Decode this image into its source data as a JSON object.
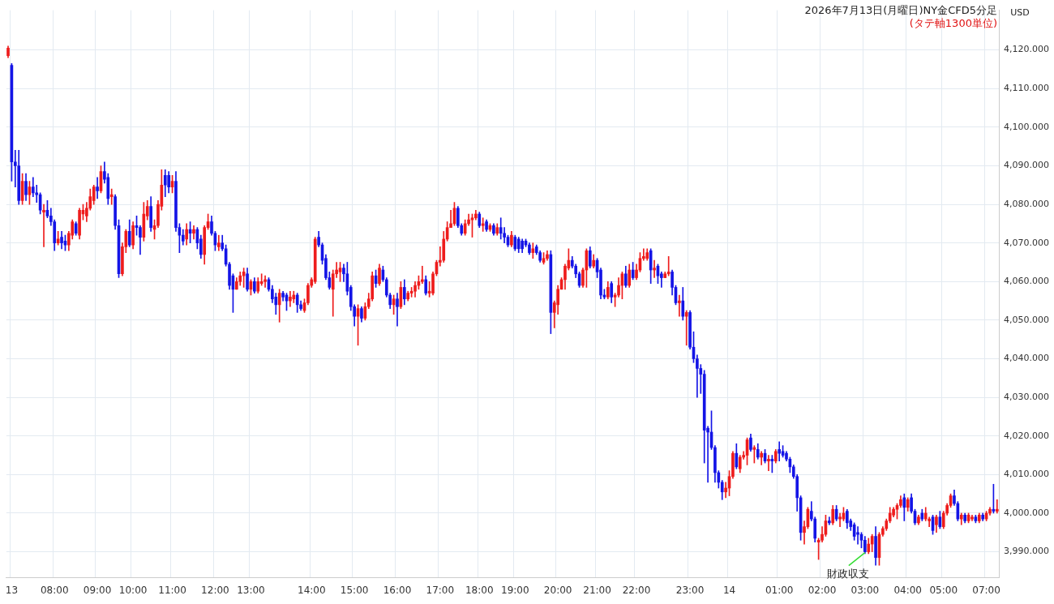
{
  "chart_data": {
    "type": "candlestick",
    "title": "2026年7月13日(月曜日)NY金CFD5分足",
    "subtitle": "(タテ軸1300単位)",
    "ylabel": "USD",
    "annotations": [
      {
        "text": "財政収支",
        "x": "03:00",
        "y": 3990
      }
    ],
    "categories": [
      null,
      "13",
      null,
      null,
      null,
      null,
      null,
      null,
      null,
      null,
      null,
      null,
      null,
      "08:00",
      null,
      null,
      null,
      null,
      null,
      null,
      null,
      null,
      null,
      null,
      null,
      "09:00",
      null,
      null,
      null,
      null,
      null,
      null,
      null,
      null,
      null,
      "10:00",
      null,
      null,
      null,
      null,
      null,
      null,
      null,
      null,
      null,
      null,
      "11:00",
      null,
      null,
      null,
      null,
      null,
      null,
      null,
      null,
      null,
      null,
      null,
      "12:00",
      null,
      null,
      null,
      null,
      null,
      null,
      null,
      null,
      null,
      "13:00",
      null,
      null,
      null,
      null,
      null,
      null,
      null,
      null,
      null,
      null,
      null,
      null,
      null,
      null,
      null,
      null,
      "14:00",
      null,
      null,
      null,
      null,
      null,
      null,
      null,
      null,
      null,
      null,
      null,
      "15:00",
      null,
      null,
      null,
      null,
      null,
      null,
      null,
      null,
      null,
      null,
      null,
      "16:00",
      null,
      null,
      null,
      null,
      null,
      null,
      null,
      null,
      null,
      null,
      null,
      "17:00",
      null,
      null,
      null,
      null,
      null,
      null,
      null,
      null,
      null,
      null,
      "18:00",
      null,
      null,
      null,
      null,
      null,
      null,
      null,
      null,
      null,
      "19:00",
      null,
      null,
      null,
      null,
      null,
      null,
      null,
      null,
      null,
      null,
      null,
      "20:00",
      null,
      null,
      null,
      null,
      null,
      null,
      null,
      null,
      null,
      null,
      "21:00",
      null,
      null,
      null,
      null,
      null,
      null,
      null,
      null,
      null,
      null,
      "22:00",
      null,
      null,
      null,
      null,
      null,
      null,
      null,
      null,
      null,
      null,
      null,
      null,
      null,
      null,
      "23:00",
      null,
      null,
      null,
      null,
      null,
      null,
      null,
      null,
      null,
      null,
      "14",
      null,
      null,
      null,
      null,
      null,
      null,
      null,
      null,
      null,
      null,
      null,
      null,
      null,
      "01:00",
      null,
      null,
      null,
      null,
      null,
      null,
      null,
      null,
      null,
      null,
      null,
      "02:00",
      null,
      null,
      null,
      null,
      null,
      null,
      null,
      null,
      null,
      null,
      null,
      "03:00",
      null,
      null,
      null,
      null,
      null,
      null,
      null,
      null,
      null,
      null,
      null,
      "04:00",
      null,
      null,
      null,
      null,
      null,
      null,
      null,
      null,
      null,
      "05:00",
      null,
      null,
      null,
      null,
      null,
      null,
      null,
      null,
      null,
      null,
      null,
      "07:00",
      null,
      null,
      null
    ],
    "ohlc": [
      [
        4118.5,
        4121,
        4118,
        4120.5
      ],
      [
        4116,
        4116.5,
        4086,
        4091
      ],
      [
        4091,
        4094,
        4084.5,
        4090
      ],
      [
        4090,
        4094,
        4080,
        4081
      ],
      [
        4081,
        4088,
        4080,
        4086
      ],
      [
        4086,
        4088,
        4081,
        4082.5
      ],
      [
        4082.5,
        4086,
        4080,
        4084.5
      ],
      [
        4084.5,
        4087,
        4082,
        4083
      ],
      [
        4083,
        4085,
        4080.5,
        4082.5
      ],
      [
        4082.5,
        4083,
        4077.5,
        4078.5
      ],
      [
        4078,
        4080,
        4069,
        4078.5
      ],
      [
        4078.5,
        4081,
        4076.5,
        4077
      ],
      [
        4077,
        4079,
        4074.5,
        4075.5
      ],
      [
        4075.5,
        4076,
        4068,
        4070
      ],
      [
        4070,
        4073,
        4069.5,
        4071
      ],
      [
        4071.5,
        4073,
        4068.5,
        4070
      ],
      [
        4070.5,
        4072,
        4068,
        4069.5
      ],
      [
        4069.5,
        4073,
        4068,
        4072.5
      ],
      [
        4072,
        4076,
        4071,
        4075.5
      ],
      [
        4075,
        4075.5,
        4072,
        4072.5
      ],
      [
        4072,
        4079,
        4071,
        4078.5
      ],
      [
        4077.5,
        4080,
        4076,
        4078.5
      ],
      [
        4077,
        4080.5,
        4075.5,
        4079
      ],
      [
        4079,
        4084,
        4078.5,
        4082
      ],
      [
        4081,
        4085,
        4080,
        4084.5
      ],
      [
        4084.5,
        4087,
        4081.5,
        4083.5
      ],
      [
        4083.5,
        4090,
        4083,
        4088.5
      ],
      [
        4088.5,
        4091,
        4085.5,
        4086.5
      ],
      [
        4087,
        4088,
        4080,
        4081.5
      ],
      [
        4082,
        4084,
        4080,
        4082.5
      ],
      [
        4082,
        4082.5,
        4073.5,
        4074.5
      ],
      [
        4074.5,
        4076,
        4061,
        4062
      ],
      [
        4062,
        4070,
        4061.5,
        4069
      ],
      [
        4069,
        4073.5,
        4067.5,
        4073
      ],
      [
        4073,
        4076,
        4069,
        4069.5
      ],
      [
        4069.5,
        4075.5,
        4068.5,
        4074.5
      ],
      [
        4074.5,
        4077,
        4072,
        4074
      ],
      [
        4074,
        4074.5,
        4067,
        4071.5
      ],
      [
        4071.5,
        4080.5,
        4070.5,
        4077.5
      ],
      [
        4077,
        4081,
        4076,
        4079.5
      ],
      [
        4079.5,
        4082,
        4073,
        4074
      ],
      [
        4073.5,
        4076,
        4071,
        4074.5
      ],
      [
        4074.5,
        4081,
        4074,
        4080
      ],
      [
        4079.5,
        4089,
        4078.5,
        4085
      ],
      [
        4087.5,
        4089,
        4082,
        4085
      ],
      [
        4087.5,
        4088.5,
        4083,
        4084.5
      ],
      [
        4084.5,
        4087.5,
        4083,
        4086
      ],
      [
        4086,
        4088.5,
        4073,
        4074
      ],
      [
        4074,
        4075,
        4067.5,
        4072
      ],
      [
        4072,
        4073.5,
        4069.5,
        4070.5
      ],
      [
        4071,
        4075,
        4069.5,
        4073.5
      ],
      [
        4073.5,
        4075.5,
        4070,
        4072.5
      ],
      [
        4072.5,
        4074.5,
        4071,
        4073.5
      ],
      [
        4073.5,
        4074,
        4068.5,
        4070
      ],
      [
        4071,
        4072,
        4066,
        4067
      ],
      [
        4067,
        4074.5,
        4064.5,
        4074
      ],
      [
        4074,
        4077.5,
        4073.5,
        4075.5
      ],
      [
        4075.5,
        4077,
        4072,
        4072.5
      ],
      [
        4072.5,
        4073,
        4068,
        4069.5
      ],
      [
        4069,
        4072,
        4068,
        4070
      ],
      [
        4070,
        4072,
        4068,
        4068.5
      ],
      [
        4068.5,
        4069.5,
        4064,
        4064.5
      ],
      [
        4064.5,
        4065,
        4058,
        4059
      ],
      [
        4061.5,
        4062,
        4052,
        4058
      ],
      [
        4058,
        4061,
        4058,
        4060
      ],
      [
        4060,
        4062.5,
        4059,
        4061.5
      ],
      [
        4061.5,
        4063.5,
        4058.5,
        4062.5
      ],
      [
        4062,
        4063.5,
        4057.5,
        4058
      ],
      [
        4058,
        4060.5,
        4056.5,
        4060
      ],
      [
        4060,
        4061,
        4057,
        4057.5
      ],
      [
        4057.5,
        4061,
        4057,
        4060
      ],
      [
        4059.5,
        4062,
        4059,
        4060
      ],
      [
        4060,
        4061.5,
        4058.5,
        4060.5
      ],
      [
        4060.5,
        4061,
        4057.5,
        4058
      ],
      [
        4058,
        4059,
        4054.5,
        4055.5
      ],
      [
        4056,
        4057,
        4051.5,
        4054
      ],
      [
        4054,
        4058,
        4049.5,
        4057
      ],
      [
        4057,
        4057.5,
        4055,
        4056
      ],
      [
        4056.5,
        4057,
        4052.5,
        4055
      ],
      [
        4055,
        4057.5,
        4053.5,
        4056
      ],
      [
        4055.5,
        4057.5,
        4054.5,
        4056.5
      ],
      [
        4056.5,
        4057,
        4052,
        4054
      ],
      [
        4054,
        4055,
        4052.5,
        4053
      ],
      [
        4052.5,
        4055.5,
        4052,
        4054.5
      ],
      [
        4054.5,
        4059.5,
        4054,
        4059
      ],
      [
        4059,
        4061,
        4058.5,
        4060.5
      ],
      [
        4060,
        4071.5,
        4059.5,
        4071
      ],
      [
        4071.5,
        4073,
        4069,
        4069.5
      ],
      [
        4069.5,
        4070,
        4064.5,
        4065.5
      ],
      [
        4066,
        4067,
        4060.5,
        4061
      ],
      [
        4061,
        4062.5,
        4058,
        4058.5
      ],
      [
        4058,
        4063,
        4051,
        4062
      ],
      [
        4062,
        4065,
        4061,
        4063
      ],
      [
        4062.5,
        4065,
        4060,
        4063.5
      ],
      [
        4063.5,
        4064.5,
        4060,
        4062
      ],
      [
        4062,
        4065,
        4056.5,
        4057.5
      ],
      [
        4058.5,
        4059,
        4052.5,
        4053.5
      ],
      [
        4053.5,
        4054,
        4048.5,
        4051
      ],
      [
        4051,
        4054,
        4043.5,
        4053
      ],
      [
        4053,
        4053.5,
        4049.5,
        4050.5
      ],
      [
        4050.5,
        4054.5,
        4050,
        4053.5
      ],
      [
        4053.5,
        4057,
        4053,
        4055.5
      ],
      [
        4055.5,
        4062.5,
        4055,
        4061.5
      ],
      [
        4061.5,
        4063,
        4058.5,
        4059.5
      ],
      [
        4059.5,
        4064.5,
        4059,
        4063.5
      ],
      [
        4063,
        4064,
        4060,
        4060.5
      ],
      [
        4060.5,
        4061,
        4056,
        4056.5
      ],
      [
        4056.5,
        4057,
        4053,
        4054
      ],
      [
        4054,
        4056.5,
        4051.5,
        4055.5
      ],
      [
        4055.5,
        4057,
        4048.5,
        4053.5
      ],
      [
        4053.5,
        4060,
        4053,
        4058.5
      ],
      [
        4058.5,
        4060.5,
        4054,
        4055.5
      ],
      [
        4055.5,
        4057.5,
        4055,
        4057
      ],
      [
        4057,
        4058.5,
        4056,
        4057.5
      ],
      [
        4057.5,
        4060,
        4056,
        4059
      ],
      [
        4059,
        4061.5,
        4058,
        4060
      ],
      [
        4060,
        4064,
        4059.5,
        4060.5
      ],
      [
        4060.5,
        4061.5,
        4056.5,
        4057
      ],
      [
        4057,
        4060,
        4056,
        4057.5
      ],
      [
        4057,
        4062.5,
        4056.5,
        4062
      ],
      [
        4062,
        4065.5,
        4061.5,
        4065
      ],
      [
        4065,
        4069,
        4064,
        4065.5
      ],
      [
        4065.5,
        4073,
        4065,
        4071
      ],
      [
        4071,
        4075.5,
        4070.5,
        4074
      ],
      [
        4074,
        4078.5,
        4074,
        4075
      ],
      [
        4075,
        4080.5,
        4074.5,
        4079
      ],
      [
        4079,
        4079.5,
        4074,
        4074.5
      ],
      [
        4074.5,
        4075,
        4072,
        4072.5
      ],
      [
        4072.5,
        4076,
        4072,
        4075
      ],
      [
        4075,
        4077.5,
        4074.5,
        4076
      ],
      [
        4076,
        4077.5,
        4071.5,
        4076.5
      ],
      [
        4076.5,
        4078.5,
        4076,
        4077.5
      ],
      [
        4077.5,
        4078,
        4074,
        4074.5
      ],
      [
        4074.5,
        4076.5,
        4073,
        4075
      ],
      [
        4075.5,
        4076,
        4073,
        4073.5
      ],
      [
        4073.5,
        4075,
        4073,
        4074.5
      ],
      [
        4074.5,
        4075,
        4072,
        4072.5
      ],
      [
        4072.5,
        4075,
        4072,
        4074
      ],
      [
        4074,
        4076.5,
        4071,
        4072.5
      ],
      [
        4072.5,
        4074,
        4070,
        4071.5
      ],
      [
        4071.5,
        4072,
        4069,
        4069.5
      ],
      [
        4069.5,
        4073,
        4069,
        4072
      ],
      [
        4071.5,
        4072,
        4068,
        4068.5
      ],
      [
        4071,
        4071.5,
        4067.5,
        4068.5
      ],
      [
        4070.5,
        4071,
        4067.5,
        4068.5
      ],
      [
        4070.5,
        4071,
        4069,
        4069.5
      ],
      [
        4069.5,
        4070,
        4067,
        4067.5
      ],
      [
        4067.5,
        4070,
        4066,
        4068.5
      ],
      [
        4069,
        4069.5,
        4067,
        4067.5
      ],
      [
        4067.5,
        4068,
        4065,
        4065.5
      ],
      [
        4065,
        4067.5,
        4064.5,
        4066
      ],
      [
        4066,
        4068,
        4065.5,
        4067
      ],
      [
        4067,
        4068,
        4046.5,
        4052
      ],
      [
        4052,
        4055,
        4048,
        4054.5
      ],
      [
        4054,
        4059,
        4051.5,
        4058
      ],
      [
        4058,
        4061,
        4058,
        4060.5
      ],
      [
        4060.5,
        4064.5,
        4058,
        4064
      ],
      [
        4063.5,
        4068.5,
        4063,
        4065.5
      ],
      [
        4065.5,
        4066.5,
        4063.5,
        4064
      ],
      [
        4064,
        4064.5,
        4061,
        4062
      ],
      [
        4062,
        4062.5,
        4058.5,
        4059
      ],
      [
        4059,
        4063.5,
        4058.5,
        4063
      ],
      [
        4063,
        4068.5,
        4058.5,
        4068
      ],
      [
        4068,
        4069,
        4063.5,
        4064
      ],
      [
        4064,
        4067,
        4063.5,
        4065.5
      ],
      [
        4065.5,
        4066,
        4061,
        4062.5
      ],
      [
        4063,
        4063.5,
        4055.5,
        4056.5
      ],
      [
        4056.5,
        4058,
        4055.5,
        4056
      ],
      [
        4056,
        4060,
        4055.5,
        4058.5
      ],
      [
        4059.5,
        4060,
        4054.5,
        4056
      ],
      [
        4056,
        4057,
        4053.5,
        4056.5
      ],
      [
        4056.5,
        4061,
        4056,
        4059
      ],
      [
        4059,
        4062.5,
        4055.5,
        4062
      ],
      [
        4062,
        4064,
        4058.5,
        4059
      ],
      [
        4059,
        4064.5,
        4058.5,
        4063
      ],
      [
        4063,
        4065,
        4060.5,
        4061
      ],
      [
        4061,
        4064.5,
        4060.5,
        4063
      ],
      [
        4063,
        4067.5,
        4062.5,
        4066
      ],
      [
        4066,
        4068.5,
        4065.5,
        4066.5
      ],
      [
        4066,
        4068.5,
        4065.5,
        4067.5
      ],
      [
        4068,
        4068.5,
        4059.5,
        4063
      ],
      [
        4063,
        4065.5,
        4061,
        4063.5
      ],
      [
        4064,
        4064.5,
        4059.5,
        4061.5
      ],
      [
        4062,
        4062.5,
        4058.5,
        4061
      ],
      [
        4061,
        4062.5,
        4061,
        4062
      ],
      [
        4062,
        4066.5,
        4061.5,
        4062.5
      ],
      [
        4062.5,
        4063,
        4056.5,
        4058.5
      ],
      [
        4058.5,
        4059,
        4054,
        4054.5
      ],
      [
        4054.5,
        4056.5,
        4051,
        4055
      ],
      [
        4055,
        4058.5,
        4050,
        4051
      ],
      [
        4051,
        4052.5,
        4043.5,
        4052
      ],
      [
        4052,
        4052.5,
        4042.5,
        4043
      ],
      [
        4043,
        4047,
        4039,
        4040
      ],
      [
        4040,
        4041,
        4030,
        4037.5
      ],
      [
        4037.5,
        4038.5,
        4031,
        4036
      ],
      [
        4036,
        4037,
        4013,
        4021.5
      ],
      [
        4022,
        4022.5,
        4008,
        4021
      ],
      [
        4021,
        4026.5,
        4016.5,
        4017
      ],
      [
        4017,
        4017.5,
        4008,
        4010.5
      ],
      [
        4010.5,
        4011,
        4006.5,
        4008
      ],
      [
        4008,
        4008.5,
        4003.5,
        4005.5
      ],
      [
        4005.5,
        4008,
        4004,
        4006.5
      ],
      [
        4006.5,
        4011,
        4004.5,
        4009.5
      ],
      [
        4009.5,
        4016,
        4009,
        4015.5
      ],
      [
        4015.5,
        4018,
        4011.5,
        4012
      ],
      [
        4011.5,
        4015,
        4010.5,
        4014.5
      ],
      [
        4014.5,
        4016,
        4014,
        4015
      ],
      [
        4015,
        4019.5,
        4012.5,
        4019
      ],
      [
        4019.5,
        4020.5,
        4016,
        4016.5
      ],
      [
        4016.5,
        4017.5,
        4013,
        4017
      ],
      [
        4016.5,
        4018,
        4014,
        4014.5
      ],
      [
        4014.5,
        4016,
        4012.5,
        4015.5
      ],
      [
        4015.5,
        4016.5,
        4013,
        4013.5
      ],
      [
        4013.5,
        4015,
        4011,
        4014
      ],
      [
        4014,
        4015,
        4010.5,
        4013.5
      ],
      [
        4013.5,
        4016.5,
        4013,
        4016
      ],
      [
        4016.5,
        4018.5,
        4013.5,
        4015.5
      ],
      [
        4016,
        4017.5,
        4014.5,
        4015
      ],
      [
        4015.5,
        4016,
        4013.5,
        4014
      ],
      [
        4014,
        4014.5,
        4010.5,
        4012
      ],
      [
        4012,
        4012.5,
        4009,
        4009.5
      ],
      [
        4009.5,
        4010,
        4000.5,
        4004
      ],
      [
        4004,
        4004.5,
        3993,
        3995
      ],
      [
        3995,
        3998,
        3992,
        3996.5
      ],
      [
        3996.5,
        4001.5,
        3996,
        4001
      ],
      [
        4000.5,
        4003,
        3998,
        3998.5
      ],
      [
        3998.5,
        3999,
        3992.5,
        3993.5
      ],
      [
        3992.5,
        3993.5,
        3988,
        3993
      ],
      [
        3993,
        3996.5,
        3992.5,
        3994.5
      ],
      [
        3994.5,
        3999.5,
        3994,
        3998
      ],
      [
        3998,
        3999,
        3997,
        3997.5
      ],
      [
        3997.5,
        4002,
        3997,
        4001
      ],
      [
        4001,
        4002,
        3998,
        3998.5
      ],
      [
        3998.5,
        4000,
        3996.5,
        3999
      ],
      [
        3998.5,
        4001.5,
        3998,
        4000
      ],
      [
        4000.5,
        4001,
        3996,
        3997.5
      ],
      [
        3998,
        3998.5,
        3995.5,
        3996.5
      ],
      [
        3997,
        3997.5,
        3993,
        3994
      ],
      [
        3995,
        3996.5,
        3992,
        3994.5
      ],
      [
        3994.5,
        3995,
        3991,
        3993
      ],
      [
        3993,
        3994,
        3989.5,
        3990
      ],
      [
        3990,
        3993.5,
        3989.5,
        3992
      ],
      [
        3992,
        3994.5,
        3990,
        3994
      ],
      [
        3994,
        3996.5,
        3986.5,
        3988.5
      ],
      [
        3988.5,
        3995,
        3986.5,
        3994.5
      ],
      [
        3994.5,
        3996.5,
        3994,
        3996
      ],
      [
        3996,
        3998.5,
        3995.5,
        3998
      ],
      [
        3998,
        4001.5,
        3997.5,
        4000
      ],
      [
        3999.5,
        4001.5,
        3999,
        4001
      ],
      [
        4001,
        4002.5,
        3998.5,
        4002
      ],
      [
        4002,
        4004.5,
        4001.5,
        4003.5
      ],
      [
        4004,
        4005,
        3998,
        4001.5
      ],
      [
        4001.5,
        4004,
        4000.5,
        4003.5
      ],
      [
        4004,
        4005,
        4000,
        4000.5
      ],
      [
        4000.5,
        4001,
        3997,
        3997.5
      ],
      [
        3997.5,
        3999.5,
        3997,
        3999
      ],
      [
        4000,
        4001,
        3998,
        3998.5
      ],
      [
        3998.5,
        4001.5,
        3998,
        4000
      ],
      [
        3998,
        3999,
        3996.5,
        3998.5
      ],
      [
        3999,
        3999.5,
        3994.5,
        3995.5
      ],
      [
        3997,
        3999.5,
        3995,
        3999
      ],
      [
        3999,
        4000.5,
        3996,
        3996.5
      ],
      [
        3996.5,
        4000.5,
        3996,
        4000
      ],
      [
        4000,
        4002.5,
        3999.5,
        4002
      ],
      [
        4002,
        4005,
        4001.5,
        4004.5
      ],
      [
        4004.5,
        4006,
        4002,
        4002.5
      ],
      [
        4002.5,
        4003,
        3998,
        3998.5
      ],
      [
        3998.5,
        4000,
        3997,
        3999.5
      ],
      [
        3999.5,
        4000,
        3997.5,
        3998
      ],
      [
        3998,
        4000,
        3997.5,
        3999.5
      ],
      [
        3998.5,
        3999.5,
        3998,
        3999
      ],
      [
        3999,
        3999.5,
        3997.5,
        3998
      ],
      [
        3998,
        4000,
        3997.5,
        3999.5
      ],
      [
        3999.5,
        4000,
        3998,
        3998.5
      ],
      [
        3998.5,
        4000.5,
        3998,
        4000
      ],
      [
        4000,
        4001.5,
        3999.5,
        4001
      ],
      [
        4001,
        4007.5,
        4000,
        4000.5
      ],
      [
        4000.5,
        4003.5,
        4000,
        4001
      ]
    ],
    "colors": [
      "#ee1c1c",
      "#1414e6",
      "#1414e6",
      "#1414e6",
      "#ee1c1c",
      "#1414e6",
      "#ee1c1c",
      "#1414e6",
      "#1414e6",
      "#1414e6",
      "#ee1c1c",
      "#1414e6",
      "#1414e6",
      "#1414e6",
      "#ee1c1c",
      "#1414e6",
      "#1414e6",
      "#ee1c1c",
      "#ee1c1c",
      "#1414e6",
      "#ee1c1c",
      "#ee1c1c",
      "#ee1c1c",
      "#ee1c1c",
      "#ee1c1c",
      "#1414e6",
      "#ee1c1c",
      "#1414e6",
      "#1414e6",
      "#ee1c1c",
      "#1414e6",
      "#1414e6",
      "#ee1c1c",
      "#ee1c1c",
      "#1414e6",
      "#ee1c1c",
      "#1414e6",
      "#1414e6",
      "#ee1c1c",
      "#ee1c1c",
      "#1414e6",
      "#ee1c1c",
      "#ee1c1c",
      "#ee1c1c",
      "#1414e6",
      "#1414e6",
      "#ee1c1c",
      "#1414e6",
      "#1414e6",
      "#1414e6",
      "#ee1c1c",
      "#1414e6",
      "#ee1c1c",
      "#1414e6",
      "#1414e6",
      "#ee1c1c",
      "#ee1c1c",
      "#1414e6",
      "#1414e6",
      "#ee1c1c",
      "#1414e6",
      "#1414e6",
      "#1414e6",
      "#1414e6",
      "#ee1c1c",
      "#ee1c1c",
      "#ee1c1c",
      "#1414e6",
      "#ee1c1c",
      "#1414e6",
      "#ee1c1c",
      "#ee1c1c",
      "#ee1c1c",
      "#1414e6",
      "#1414e6",
      "#1414e6",
      "#ee1c1c",
      "#1414e6",
      "#1414e6",
      "#ee1c1c",
      "#ee1c1c",
      "#1414e6",
      "#1414e6",
      "#ee1c1c",
      "#ee1c1c",
      "#ee1c1c",
      "#ee1c1c",
      "#1414e6",
      "#1414e6",
      "#1414e6",
      "#1414e6",
      "#ee1c1c",
      "#ee1c1c",
      "#ee1c1c",
      "#1414e6",
      "#1414e6",
      "#1414e6",
      "#1414e6",
      "#ee1c1c",
      "#1414e6",
      "#ee1c1c",
      "#ee1c1c",
      "#ee1c1c",
      "#1414e6",
      "#ee1c1c",
      "#1414e6",
      "#1414e6",
      "#1414e6",
      "#ee1c1c",
      "#1414e6",
      "#ee1c1c",
      "#1414e6",
      "#ee1c1c",
      "#ee1c1c",
      "#ee1c1c",
      "#ee1c1c",
      "#ee1c1c",
      "#1414e6",
      "#ee1c1c",
      "#ee1c1c",
      "#ee1c1c",
      "#ee1c1c",
      "#ee1c1c",
      "#ee1c1c",
      "#ee1c1c",
      "#ee1c1c",
      "#1414e6",
      "#1414e6",
      "#ee1c1c",
      "#ee1c1c",
      "#ee1c1c",
      "#ee1c1c",
      "#1414e6",
      "#ee1c1c",
      "#1414e6",
      "#ee1c1c",
      "#1414e6",
      "#ee1c1c",
      "#1414e6",
      "#1414e6",
      "#1414e6",
      "#ee1c1c",
      "#1414e6",
      "#1414e6",
      "#1414e6",
      "#1414e6",
      "#1414e6",
      "#ee1c1c",
      "#1414e6",
      "#1414e6",
      "#ee1c1c",
      "#ee1c1c",
      "#1414e6",
      "#ee1c1c",
      "#ee1c1c",
      "#ee1c1c",
      "#ee1c1c",
      "#ee1c1c",
      "#1414e6",
      "#1414e6",
      "#1414e6",
      "#ee1c1c",
      "#ee1c1c",
      "#1414e6",
      "#ee1c1c",
      "#1414e6",
      "#1414e6",
      "#1414e6",
      "#ee1c1c",
      "#1414e6",
      "#ee1c1c",
      "#ee1c1c",
      "#ee1c1c",
      "#1414e6",
      "#ee1c1c",
      "#1414e6",
      "#ee1c1c",
      "#ee1c1c",
      "#ee1c1c",
      "#ee1c1c",
      "#1414e6",
      "#ee1c1c",
      "#1414e6",
      "#1414e6",
      "#ee1c1c",
      "#ee1c1c",
      "#1414e6",
      "#1414e6",
      "#ee1c1c",
      "#1414e6",
      "#ee1c1c",
      "#1414e6",
      "#1414e6",
      "#1414e6",
      "#1414e6",
      "#1414e6",
      "#1414e6",
      "#1414e6",
      "#1414e6",
      "#1414e6",
      "#1414e6",
      "#ee1c1c",
      "#ee1c1c",
      "#ee1c1c",
      "#1414e6",
      "#ee1c1c",
      "#ee1c1c",
      "#ee1c1c",
      "#1414e6",
      "#ee1c1c",
      "#1414e6",
      "#ee1c1c",
      "#1414e6",
      "#ee1c1c",
      "#1414e6",
      "#ee1c1c",
      "#1414e6",
      "#1414e6",
      "#1414e6",
      "#1414e6",
      "#1414e6",
      "#1414e6",
      "#1414e6",
      "#ee1c1c",
      "#ee1c1c",
      "#1414e6",
      "#1414e6",
      "#ee1c1c",
      "#ee1c1c",
      "#ee1c1c",
      "#1414e6",
      "#ee1c1c",
      "#1414e6",
      "#ee1c1c",
      "#ee1c1c",
      "#1414e6",
      "#1414e6",
      "#1414e6",
      "#1414e6",
      "#1414e6",
      "#1414e6",
      "#ee1c1c",
      "#ee1c1c",
      "#1414e6",
      "#ee1c1c",
      "#ee1c1c",
      "#ee1c1c",
      "#ee1c1c",
      "#ee1c1c",
      "#ee1c1c",
      "#ee1c1c",
      "#1414e6",
      "#ee1c1c",
      "#1414e6",
      "#1414e6",
      "#ee1c1c",
      "#1414e6",
      "#ee1c1c",
      "#ee1c1c",
      "#1414e6",
      "#ee1c1c",
      "#1414e6",
      "#ee1c1c",
      "#ee1c1c",
      "#ee1c1c",
      "#1414e6",
      "#1414e6",
      "#ee1c1c",
      "#1414e6",
      "#ee1c1c",
      "#ee1c1c",
      "#1414e6",
      "#ee1c1c",
      "#1414e6",
      "#ee1c1c",
      "#ee1c1c",
      "#1414e6",
      "#ee1c1c"
    ],
    "ylim": [
      3983.4,
      4130.3
    ],
    "yticks": [
      {
        "value": 3990,
        "label": "3,990.000"
      },
      {
        "value": 4000,
        "label": "4,000.000"
      },
      {
        "value": 4010,
        "label": "4,010.000"
      },
      {
        "value": 4020,
        "label": "4,020.000"
      },
      {
        "value": 4030,
        "label": "4,030.000"
      },
      {
        "value": 4040,
        "label": "4,040.000"
      },
      {
        "value": 4050,
        "label": "4,050.000"
      },
      {
        "value": 4060,
        "label": "4,060.000"
      },
      {
        "value": 4070,
        "label": "4,070.000"
      },
      {
        "value": 4080,
        "label": "4,080.000"
      },
      {
        "value": 4090,
        "label": "4,090.000"
      },
      {
        "value": 4100,
        "label": "4,100.000"
      },
      {
        "value": 4110,
        "label": "4,110.000"
      },
      {
        "value": 4120,
        "label": "4,120.000"
      }
    ],
    "grid": true
  }
}
